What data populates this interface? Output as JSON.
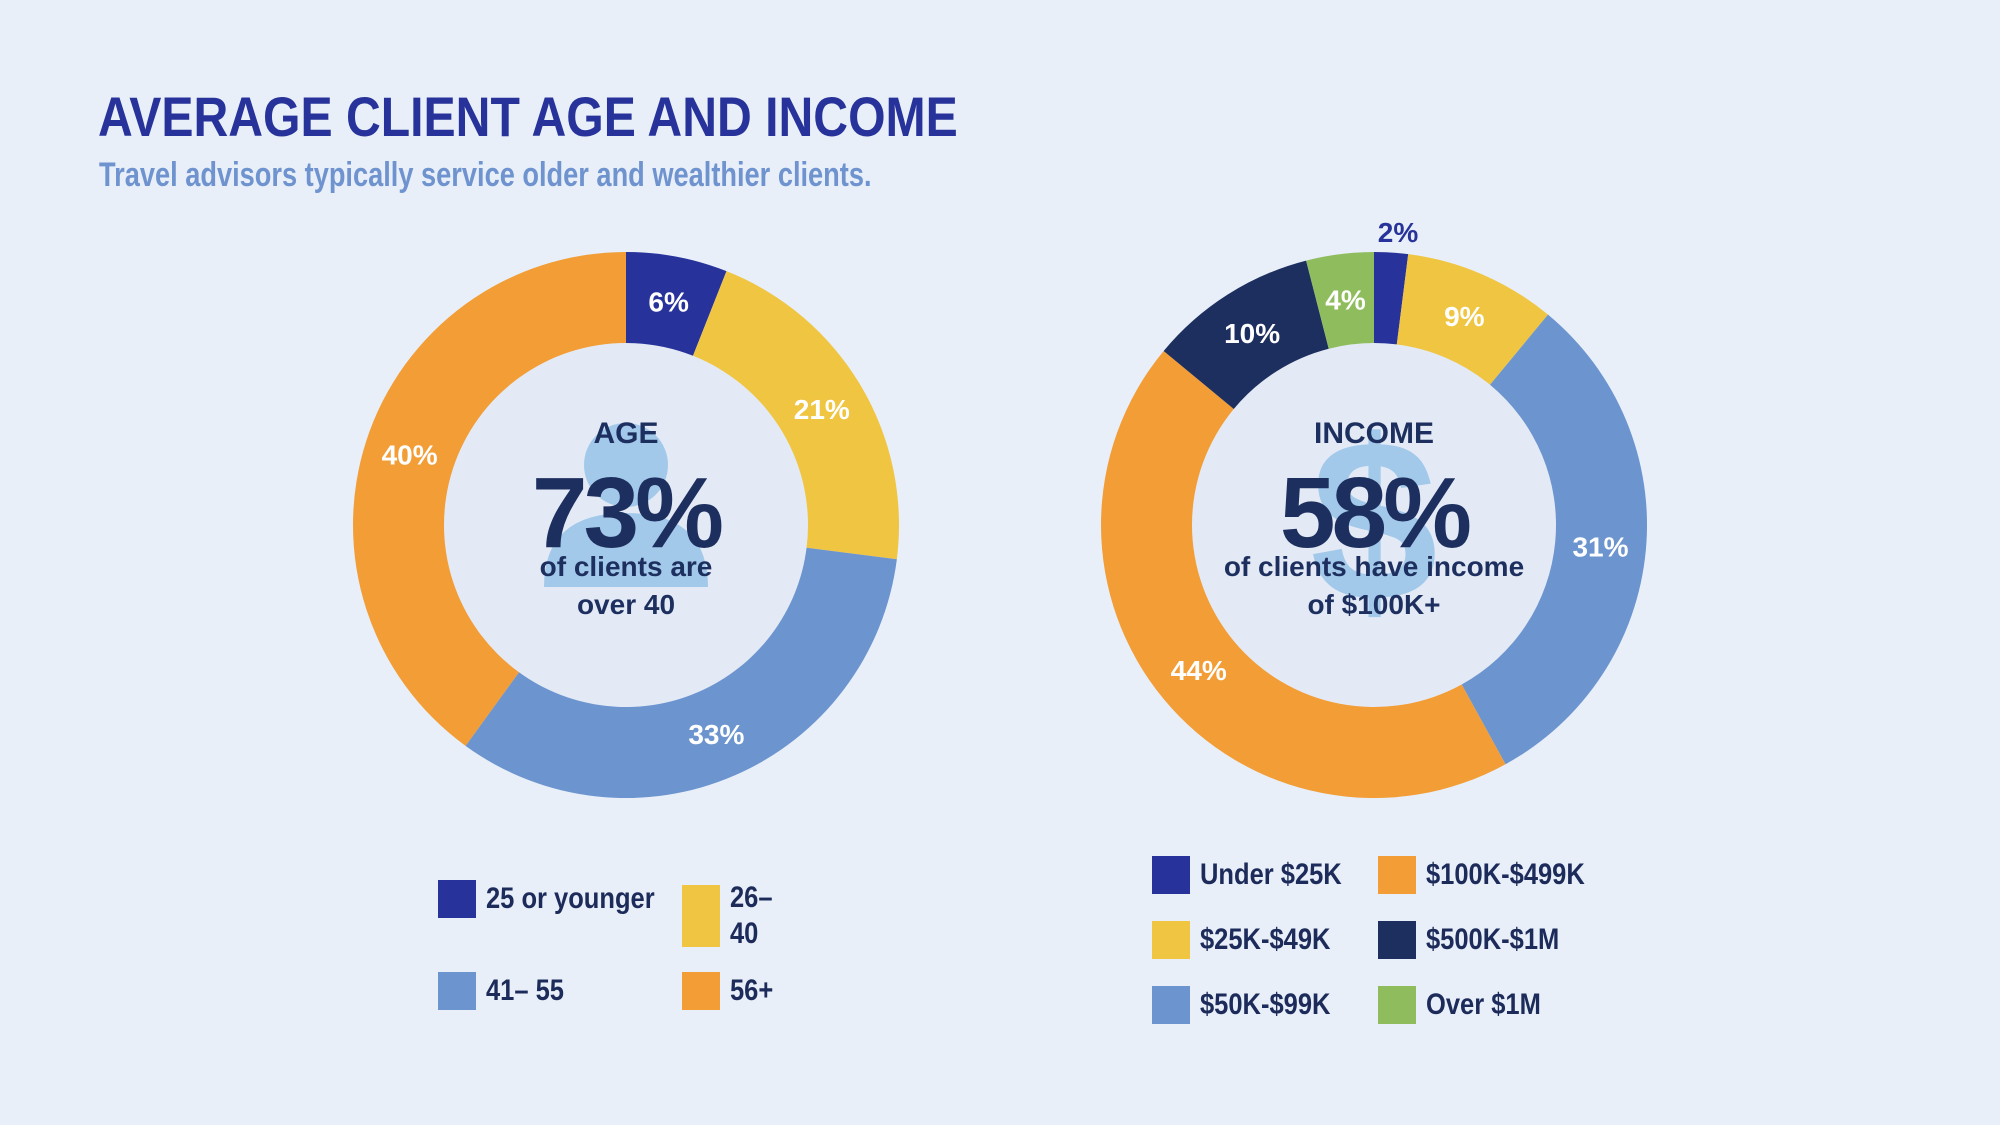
{
  "header": {
    "title": "AVERAGE CLIENT AGE AND INCOME",
    "subtitle": "Travel advisors typically service older and wealthier clients."
  },
  "chart_data": [
    {
      "type": "pie",
      "donut": true,
      "center_heading": "AGE",
      "center_value": "73%",
      "center_caption_line1": "of clients are",
      "center_caption_line2": "over 40",
      "center_icon": "person-icon",
      "categories": [
        "25 or younger",
        "26–40",
        "41–55",
        "56+"
      ],
      "values": [
        6,
        21,
        33,
        40
      ],
      "value_labels": [
        "6%",
        "21%",
        "33%",
        "40%"
      ],
      "colors": [
        "#27339a",
        "#efc541",
        "#6c94cf",
        "#f29d35"
      ],
      "legend": [
        {
          "label": "25 or younger",
          "color": "#27339a"
        },
        {
          "label": "26–40",
          "color": "#efc541"
        },
        {
          "label": "41– 55",
          "color": "#6c94cf"
        },
        {
          "label": "56+",
          "color": "#f29d35"
        }
      ],
      "legend_position": "bottom"
    },
    {
      "type": "pie",
      "donut": true,
      "center_heading": "INCOME",
      "center_value": "58%",
      "center_caption_line1": "of clients have income",
      "center_caption_line2": "of $100K+",
      "center_icon": "dollar-icon",
      "categories": [
        "Under $25K",
        "$25K-$49K",
        "$50K-$99K",
        "$100K-$499K",
        "$500K-$1M",
        "Over $1M"
      ],
      "values": [
        2,
        9,
        31,
        44,
        10,
        4
      ],
      "value_labels": [
        "2%",
        "9%",
        "31%",
        "44%",
        "10%",
        "4%"
      ],
      "colors": [
        "#27339a",
        "#efc541",
        "#6c94cf",
        "#f29d35",
        "#1d2f5e",
        "#8fbd5e"
      ],
      "legend": [
        {
          "label": "Under $25K",
          "color": "#27339a"
        },
        {
          "label": "$25K-$49K",
          "color": "#efc541"
        },
        {
          "label": "$50K-$99K",
          "color": "#6c94cf"
        },
        {
          "label": "$100K-$499K",
          "color": "#f29d35"
        },
        {
          "label": "$500K-$1M",
          "color": "#1d2f5e"
        },
        {
          "label": "Over $1M",
          "color": "#8fbd5e"
        }
      ],
      "legend_position": "bottom"
    }
  ]
}
